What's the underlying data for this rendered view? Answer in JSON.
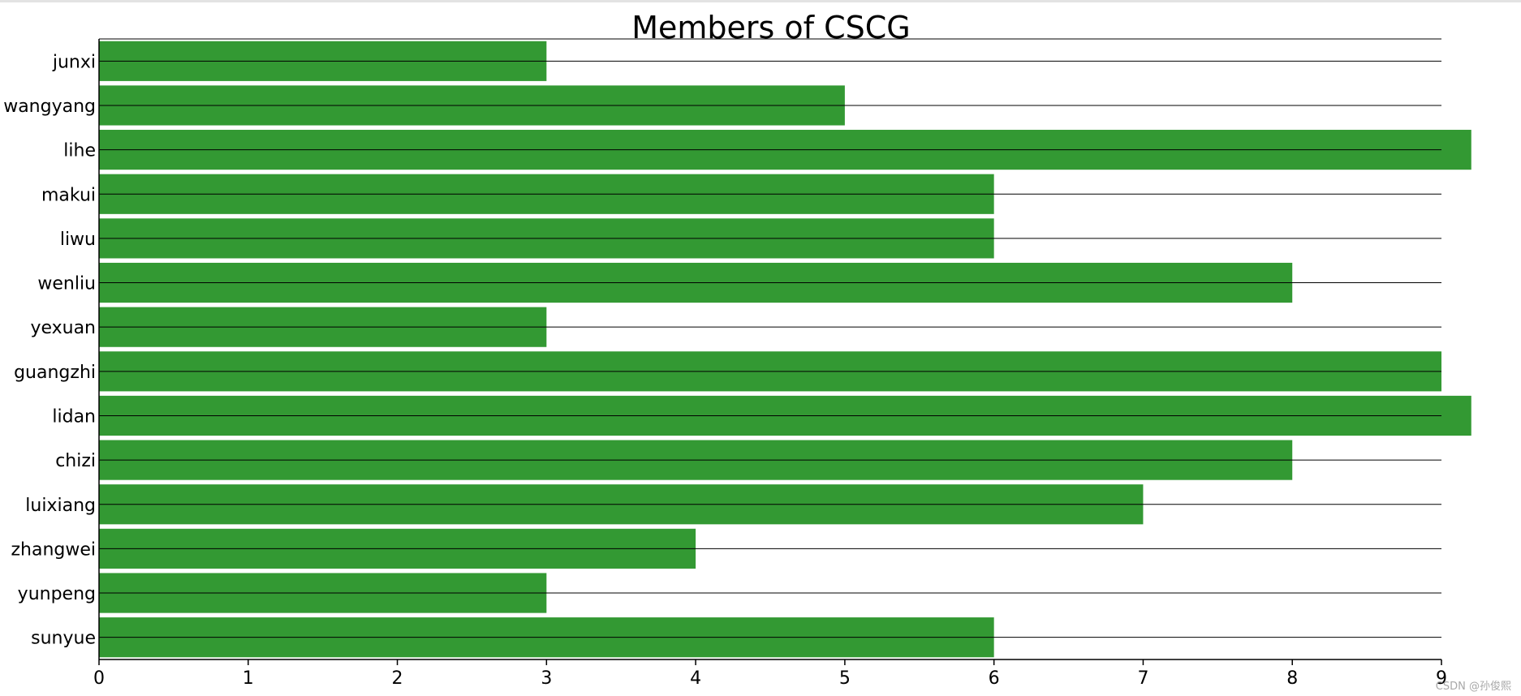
{
  "chart_data": {
    "type": "bar",
    "orientation": "horizontal",
    "title": "Members of CSCG",
    "categories": [
      "junxi",
      "wangyang",
      "lihe",
      "makui",
      "liwu",
      "wenliu",
      "yexuan",
      "guangzhi",
      "lidan",
      "chizi",
      "luixiang",
      "zhangwei",
      "yunpeng",
      "sunyue"
    ],
    "values": [
      3,
      5,
      9.2,
      6,
      6,
      8,
      3,
      9,
      9.2,
      8,
      7,
      4,
      3,
      6
    ],
    "xlim": [
      0,
      9
    ],
    "x_ticks": [
      0,
      1,
      2,
      3,
      4,
      5,
      6,
      7,
      8,
      9
    ],
    "xlabel": "",
    "ylabel": "",
    "grid": true,
    "bar_color": "#339933"
  },
  "watermark": "CSDN @孙俊熙"
}
